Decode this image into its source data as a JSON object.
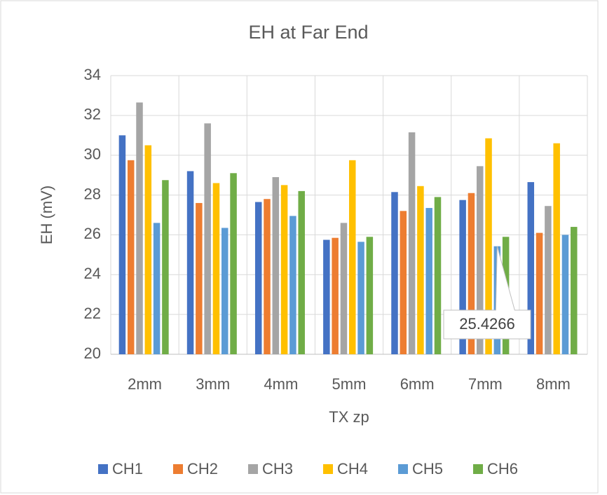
{
  "chart_data": {
    "type": "bar",
    "title": "EH at Far End",
    "x_label": "TX zp",
    "y_label": "EH (mV)",
    "categories": [
      "2mm",
      "3mm",
      "4mm",
      "5mm",
      "6mm",
      "7mm",
      "8mm"
    ],
    "series": [
      {
        "name": "CH1",
        "color": "#4472c4",
        "values": [
          31.0,
          29.2,
          27.65,
          25.75,
          28.15,
          27.75,
          28.65
        ]
      },
      {
        "name": "CH2",
        "color": "#ed7d31",
        "values": [
          29.75,
          27.6,
          27.8,
          25.85,
          27.2,
          28.1,
          26.1
        ]
      },
      {
        "name": "CH3",
        "color": "#a5a5a5",
        "values": [
          32.65,
          31.6,
          28.9,
          26.6,
          31.15,
          29.45,
          27.45
        ]
      },
      {
        "name": "CH4",
        "color": "#ffc000",
        "values": [
          30.5,
          28.6,
          28.5,
          29.75,
          28.45,
          30.85,
          30.6
        ]
      },
      {
        "name": "CH5",
        "color": "#5b9bd5",
        "values": [
          26.6,
          26.35,
          26.95,
          25.65,
          27.35,
          25.4266,
          26.0
        ]
      },
      {
        "name": "CH6",
        "color": "#70ad47",
        "values": [
          28.75,
          29.1,
          28.2,
          25.9,
          27.9,
          25.9,
          26.4
        ]
      }
    ],
    "ylim": [
      20,
      34
    ],
    "yticks": [
      20,
      22,
      24,
      26,
      28,
      30,
      32,
      34
    ],
    "grid": true,
    "legend": "bottom"
  }
}
